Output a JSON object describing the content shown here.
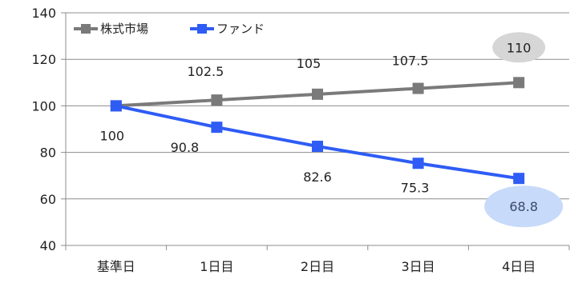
{
  "chart_data": {
    "type": "line",
    "categories": [
      "基準日",
      "1日目",
      "2日目",
      "3日目",
      "4日目"
    ],
    "ylim": [
      40,
      140
    ],
    "yticks": [
      40,
      60,
      80,
      100,
      120,
      140
    ],
    "grid": true,
    "legend_position": "top-left",
    "series": [
      {
        "name": "株式市場",
        "values": [
          100,
          102.5,
          105,
          107.5,
          110
        ],
        "labels": [
          "",
          "102.5",
          "105",
          "107.5",
          "110"
        ],
        "color": "#7a7a7a",
        "highlight_color": "#d6d6d6",
        "highlight_index": 4
      },
      {
        "name": "ファンド",
        "values": [
          100,
          90.8,
          82.6,
          75.3,
          68.8
        ],
        "labels": [
          "100",
          "90.8",
          "82.6",
          "75.3",
          "68.8"
        ],
        "color": "#2e5cf5",
        "highlight_color": "#c8dafa",
        "highlight_index": 4
      }
    ]
  }
}
